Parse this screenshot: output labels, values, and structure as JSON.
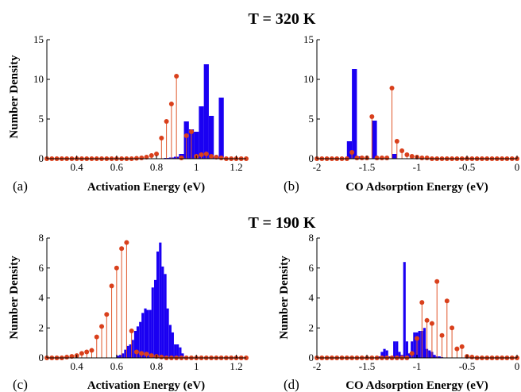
{
  "titles": [
    "T = 320 K",
    "T = 190 K"
  ],
  "colors": {
    "bars": "#1a00f2",
    "stems": "#e0562a",
    "markers": "#d9401c"
  },
  "chart_data": [
    {
      "type": "bar",
      "panel_label": "(a)",
      "xlabel": "Activation Energy (eV)",
      "ylabel": "Number Density",
      "xlim": [
        0.25,
        1.25
      ],
      "ylim": [
        0,
        15
      ],
      "xticks": [
        "0.4",
        "0.6",
        "0.8",
        "1",
        "1.2"
      ],
      "xtick_values": [
        0.4,
        0.6,
        0.8,
        1.0,
        1.2
      ],
      "yticks": [
        "0",
        "5",
        "10",
        "15"
      ],
      "ytick_values": [
        0,
        5,
        10,
        15
      ],
      "bar_width": 0.025,
      "bars": [
        [
          0.85,
          0.1
        ],
        [
          0.875,
          0.15
        ],
        [
          0.9,
          0.25
        ],
        [
          0.925,
          0.6
        ],
        [
          0.95,
          4.7
        ],
        [
          0.975,
          3.7
        ],
        [
          1.0,
          3.4
        ],
        [
          1.025,
          6.6
        ],
        [
          1.05,
          11.9
        ],
        [
          1.075,
          5.4
        ],
        [
          1.1,
          0.2
        ],
        [
          1.125,
          7.7
        ]
      ],
      "stems_x": [
        0.25,
        0.275,
        0.3,
        0.325,
        0.35,
        0.375,
        0.4,
        0.425,
        0.45,
        0.475,
        0.5,
        0.525,
        0.55,
        0.575,
        0.6,
        0.625,
        0.65,
        0.675,
        0.7,
        0.725,
        0.75,
        0.775,
        0.8,
        0.825,
        0.85,
        0.875,
        0.9,
        0.925,
        0.95,
        0.975,
        1.0,
        1.025,
        1.05,
        1.075,
        1.1,
        1.125,
        1.15,
        1.175,
        1.2,
        1.225,
        1.25
      ],
      "stems_y": [
        0,
        0,
        0,
        0,
        0,
        0,
        0,
        0,
        0,
        0,
        0,
        0,
        0,
        0,
        0,
        0,
        0,
        0,
        0.05,
        0.1,
        0.2,
        0.4,
        0.6,
        2.6,
        4.7,
        6.9,
        10.4,
        0.1,
        2.9,
        3.4,
        0.3,
        0.5,
        0.6,
        0.3,
        0.2,
        0.1,
        0,
        0,
        0,
        0,
        0
      ]
    },
    {
      "type": "bar",
      "panel_label": "(b)",
      "xlabel": "CO Adsorption Energy (eV)",
      "ylabel": "Number Density",
      "xlim": [
        -2,
        0
      ],
      "ylim": [
        0,
        15
      ],
      "xticks": [
        "-2",
        "-1.5",
        "-1",
        "-0.5",
        "0"
      ],
      "xtick_values": [
        -2,
        -1.5,
        -1,
        -0.5,
        0
      ],
      "yticks": [
        "0",
        "5",
        "10",
        "15"
      ],
      "ytick_values": [
        0,
        5,
        10,
        15
      ],
      "bar_width": 0.05,
      "bars": [
        [
          -1.675,
          2.2
        ],
        [
          -1.625,
          11.3
        ],
        [
          -1.575,
          0.3
        ],
        [
          -1.425,
          4.8
        ],
        [
          -1.225,
          0.6
        ]
      ],
      "stems_x": [
        -2.0,
        -1.95,
        -1.9,
        -1.85,
        -1.8,
        -1.75,
        -1.7,
        -1.65,
        -1.6,
        -1.55,
        -1.5,
        -1.45,
        -1.4,
        -1.35,
        -1.3,
        -1.25,
        -1.2,
        -1.15,
        -1.1,
        -1.05,
        -1.0,
        -0.95,
        -0.9,
        -0.85,
        -0.8,
        -0.75,
        -0.7,
        -0.65,
        -0.6,
        -0.55,
        -0.5,
        -0.45,
        -0.4,
        -0.35,
        -0.3,
        -0.25,
        -0.2,
        -0.15,
        -0.1,
        -0.05,
        0.0
      ],
      "stems_y": [
        0,
        0,
        0,
        0,
        0,
        0,
        0,
        0.8,
        0.1,
        0.1,
        0.1,
        5.3,
        0.1,
        0.1,
        0.1,
        8.9,
        2.2,
        1.0,
        0.5,
        0.3,
        0.2,
        0.1,
        0.1,
        0,
        0,
        0,
        0,
        0,
        0,
        0,
        0,
        0,
        0,
        0,
        0,
        0,
        0,
        0,
        0,
        0,
        0
      ]
    },
    {
      "type": "bar",
      "panel_label": "(c)",
      "xlabel": "Activation Energy (eV)",
      "ylabel": "Number Density",
      "xlim": [
        0.25,
        1.25
      ],
      "ylim": [
        0,
        8
      ],
      "xticks": [
        "0.4",
        "0.6",
        "0.8",
        "1",
        "1.2"
      ],
      "xtick_values": [
        0.4,
        0.6,
        0.8,
        1.0,
        1.2
      ],
      "yticks": [
        "0",
        "2",
        "4",
        "6",
        "8"
      ],
      "ytick_values": [
        0,
        2,
        4,
        6,
        8
      ],
      "bar_width": 0.0125,
      "bars": [
        [
          0.606,
          0.15
        ],
        [
          0.619,
          0.2
        ],
        [
          0.631,
          0.3
        ],
        [
          0.644,
          0.55
        ],
        [
          0.656,
          0.8
        ],
        [
          0.669,
          0.9
        ],
        [
          0.681,
          1.2
        ],
        [
          0.694,
          1.8
        ],
        [
          0.706,
          2.1
        ],
        [
          0.719,
          2.4
        ],
        [
          0.731,
          3.0
        ],
        [
          0.744,
          3.3
        ],
        [
          0.756,
          3.2
        ],
        [
          0.769,
          3.2
        ],
        [
          0.781,
          4.7
        ],
        [
          0.794,
          5.2
        ],
        [
          0.806,
          7.1
        ],
        [
          0.819,
          7.7
        ],
        [
          0.831,
          6.1
        ],
        [
          0.844,
          5.6
        ],
        [
          0.856,
          3.3
        ],
        [
          0.869,
          2.2
        ],
        [
          0.881,
          1.7
        ],
        [
          0.894,
          0.9
        ],
        [
          0.906,
          0.9
        ],
        [
          0.919,
          0.7
        ],
        [
          0.931,
          0.3
        ],
        [
          0.944,
          0.05
        ]
      ],
      "stems_x": [
        0.25,
        0.275,
        0.3,
        0.325,
        0.35,
        0.375,
        0.4,
        0.425,
        0.45,
        0.475,
        0.5,
        0.525,
        0.55,
        0.575,
        0.6,
        0.625,
        0.65,
        0.675,
        0.7,
        0.725,
        0.75,
        0.775,
        0.8,
        0.825,
        0.85,
        0.875,
        0.9,
        0.925,
        0.95,
        0.975,
        1.0,
        1.025,
        1.05,
        1.075,
        1.1,
        1.125,
        1.15,
        1.175,
        1.2,
        1.225,
        1.25
      ],
      "stems_y": [
        0,
        0,
        0,
        0,
        0.05,
        0.1,
        0.15,
        0.3,
        0.4,
        0.5,
        1.4,
        2.1,
        2.9,
        4.8,
        6.0,
        7.3,
        7.7,
        1.8,
        0.4,
        0.3,
        0.25,
        0.15,
        0.1,
        0.05,
        0,
        0,
        0,
        0,
        0,
        0,
        0,
        0,
        0,
        0,
        0,
        0,
        0,
        0,
        0,
        0,
        0
      ]
    },
    {
      "type": "bar",
      "panel_label": "(d)",
      "xlabel": "CO Adsorption Energy (eV)",
      "ylabel": "Number Density",
      "xlim": [
        -2,
        0
      ],
      "ylim": [
        0,
        8
      ],
      "xticks": [
        "-2",
        "-1.5",
        "-1",
        "-0.5",
        "0"
      ],
      "xtick_values": [
        -2,
        -1.5,
        -1,
        -0.5,
        0
      ],
      "yticks": [
        "0",
        "2",
        "4",
        "6",
        "8"
      ],
      "ytick_values": [
        0,
        2,
        4,
        6,
        8
      ],
      "bar_width": 0.025,
      "bars": [
        [
          -1.4,
          0.1
        ],
        [
          -1.375,
          0.1
        ],
        [
          -1.35,
          0.4
        ],
        [
          -1.325,
          0.6
        ],
        [
          -1.3,
          0.5
        ],
        [
          -1.275,
          0.1
        ],
        [
          -1.25,
          0.1
        ],
        [
          -1.225,
          1.1
        ],
        [
          -1.2,
          1.1
        ],
        [
          -1.175,
          0.4
        ],
        [
          -1.15,
          0.2
        ],
        [
          -1.125,
          6.4
        ],
        [
          -1.1,
          1.1
        ],
        [
          -1.075,
          0.3
        ],
        [
          -1.05,
          1.1
        ],
        [
          -1.025,
          1.7
        ],
        [
          -1.0,
          1.7
        ],
        [
          -0.975,
          1.8
        ],
        [
          -0.95,
          1.8
        ],
        [
          -0.925,
          2.0
        ],
        [
          -0.9,
          0.6
        ],
        [
          -0.875,
          0.5
        ],
        [
          -0.85,
          0.4
        ],
        [
          -0.825,
          0.2
        ],
        [
          -0.8,
          0.1
        ],
        [
          -0.775,
          0.1
        ],
        [
          -0.75,
          0.05
        ]
      ],
      "stems_x": [
        -2.0,
        -1.95,
        -1.9,
        -1.85,
        -1.8,
        -1.75,
        -1.7,
        -1.65,
        -1.6,
        -1.55,
        -1.5,
        -1.45,
        -1.4,
        -1.35,
        -1.3,
        -1.25,
        -1.2,
        -1.15,
        -1.1,
        -1.05,
        -1.0,
        -0.95,
        -0.9,
        -0.85,
        -0.8,
        -0.75,
        -0.7,
        -0.65,
        -0.6,
        -0.55,
        -0.5,
        -0.45,
        -0.4,
        -0.35,
        -0.3,
        -0.25,
        -0.2,
        -0.15,
        -0.1,
        -0.05,
        0.0
      ],
      "stems_y": [
        0,
        0,
        0,
        0,
        0,
        0,
        0,
        0,
        0,
        0,
        0,
        0,
        0,
        0,
        0,
        0,
        0,
        0,
        0,
        0.3,
        1.3,
        3.7,
        2.5,
        2.3,
        5.1,
        1.5,
        3.8,
        2.0,
        0.6,
        0.75,
        0.1,
        0.05,
        0,
        0,
        0,
        0,
        0,
        0,
        0,
        0,
        0
      ]
    }
  ]
}
